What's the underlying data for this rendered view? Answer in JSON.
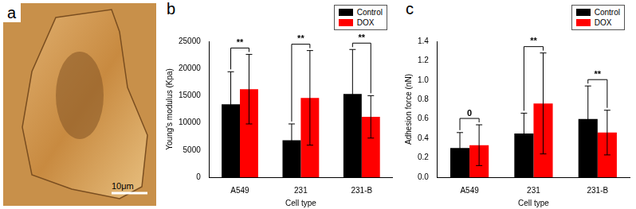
{
  "image_panel": {
    "panel_label": "a",
    "scale_bar": "10μm"
  },
  "chart_data": [
    {
      "type": "bar",
      "panel_label": "b",
      "categories": [
        "A549",
        "231",
        "231-B"
      ],
      "x_label": "Cell type",
      "y_label": "Young's modulus (Kpa)",
      "ylim": [
        0,
        25000
      ],
      "yticks": [
        0,
        5000,
        10000,
        15000,
        20000,
        25000
      ],
      "grid": false,
      "legend": "upper right",
      "series": [
        {
          "name": "Control",
          "color": "#000000",
          "values": [
            13400,
            6800,
            15300
          ],
          "errors": [
            6000,
            3000,
            8200
          ]
        },
        {
          "name": "DOX",
          "color": "#ff0000",
          "values": [
            16200,
            14600,
            11100
          ],
          "errors": [
            6400,
            8700,
            3900
          ]
        }
      ],
      "significance": [
        "**",
        "**",
        "**"
      ]
    },
    {
      "type": "bar",
      "panel_label": "c",
      "categories": [
        "A549",
        "231",
        "231-B"
      ],
      "x_label": "Cell type",
      "y_label": "Adhesion force (nN)",
      "ylim": [
        0,
        1.4
      ],
      "yticks": [
        {
          "value": 0,
          "label": "0.0"
        },
        0.2,
        0.4,
        0.6,
        0.8,
        {
          "value": 1,
          "label": "1.0"
        },
        1.2,
        1.4
      ],
      "grid": false,
      "legend": "upper right",
      "series": [
        {
          "name": "Control",
          "color": "#000000",
          "values": [
            0.3,
            0.45,
            0.6
          ],
          "errors": [
            0.16,
            0.21,
            0.34
          ]
        },
        {
          "name": "DOX",
          "color": "#ff0000",
          "values": [
            0.33,
            0.76,
            0.46
          ],
          "errors": [
            0.21,
            0.52,
            0.23
          ]
        }
      ],
      "significance": [
        "0",
        "**",
        "**"
      ]
    }
  ]
}
